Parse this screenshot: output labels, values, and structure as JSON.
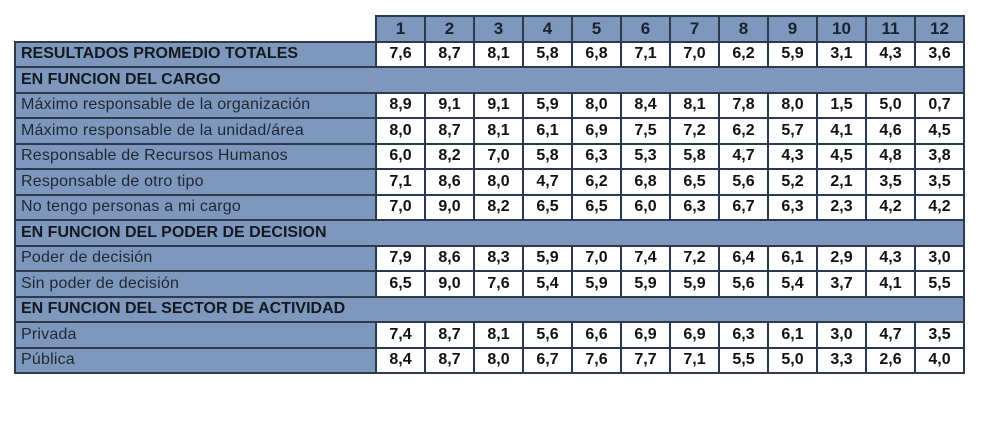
{
  "table": {
    "columns": [
      "1",
      "2",
      "3",
      "4",
      "5",
      "6",
      "7",
      "8",
      "9",
      "10",
      "11",
      "12"
    ],
    "rows": [
      {
        "type": "total",
        "label": "RESULTADOS PROMEDIO TOTALES",
        "values": [
          "7,6",
          "8,7",
          "8,1",
          "5,8",
          "6,8",
          "7,1",
          "7,0",
          "6,2",
          "5,9",
          "3,1",
          "4,3",
          "3,6"
        ]
      },
      {
        "type": "section",
        "label": "EN FUNCION DEL CARGO"
      },
      {
        "type": "data",
        "label": "Máximo responsable de la organización",
        "values": [
          "8,9",
          "9,1",
          "9,1",
          "5,9",
          "8,0",
          "8,4",
          "8,1",
          "7,8",
          "8,0",
          "1,5",
          "5,0",
          "0,7"
        ]
      },
      {
        "type": "data",
        "label": "Máximo responsable de la unidad/área",
        "values": [
          "8,0",
          "8,7",
          "8,1",
          "6,1",
          "6,9",
          "7,5",
          "7,2",
          "6,2",
          "5,7",
          "4,1",
          "4,6",
          "4,5"
        ]
      },
      {
        "type": "data",
        "label": "Responsable de Recursos Humanos",
        "values": [
          "6,0",
          "8,2",
          "7,0",
          "5,8",
          "6,3",
          "5,3",
          "5,8",
          "4,7",
          "4,3",
          "4,5",
          "4,8",
          "3,8"
        ]
      },
      {
        "type": "data",
        "label": "Responsable de otro tipo",
        "values": [
          "7,1",
          "8,6",
          "8,0",
          "4,7",
          "6,2",
          "6,8",
          "6,5",
          "5,6",
          "5,2",
          "2,1",
          "3,5",
          "3,5"
        ]
      },
      {
        "type": "data",
        "label": "No tengo personas a mi cargo",
        "values": [
          "7,0",
          "9,0",
          "8,2",
          "6,5",
          "6,5",
          "6,0",
          "6,3",
          "6,7",
          "6,3",
          "2,3",
          "4,2",
          "4,2"
        ]
      },
      {
        "type": "section",
        "label": "EN FUNCION DEL PODER DE DECISION"
      },
      {
        "type": "data",
        "label": "Poder de decisión",
        "values": [
          "7,9",
          "8,6",
          "8,3",
          "5,9",
          "7,0",
          "7,4",
          "7,2",
          "6,4",
          "6,1",
          "2,9",
          "4,3",
          "3,0"
        ]
      },
      {
        "type": "data",
        "label": "Sin poder de decisión",
        "values": [
          "6,5",
          "9,0",
          "7,6",
          "5,4",
          "5,9",
          "5,9",
          "5,9",
          "5,6",
          "5,4",
          "3,7",
          "4,1",
          "5,5"
        ]
      },
      {
        "type": "section",
        "label": "EN FUNCION DEL SECTOR DE ACTIVIDAD"
      },
      {
        "type": "data",
        "label": "Privada",
        "values": [
          "7,4",
          "8,7",
          "8,1",
          "5,6",
          "6,6",
          "6,9",
          "6,9",
          "6,3",
          "6,1",
          "3,0",
          "4,7",
          "3,5"
        ]
      },
      {
        "type": "data",
        "label": "Pública",
        "values": [
          "8,4",
          "8,7",
          "8,0",
          "6,7",
          "7,6",
          "7,7",
          "7,1",
          "5,5",
          "5,0",
          "3,3",
          "2,6",
          "4,0"
        ]
      }
    ]
  },
  "colors": {
    "header_fill": "#7e98bd",
    "border": "#2b3a4e",
    "value_fill": "#ffffff"
  }
}
